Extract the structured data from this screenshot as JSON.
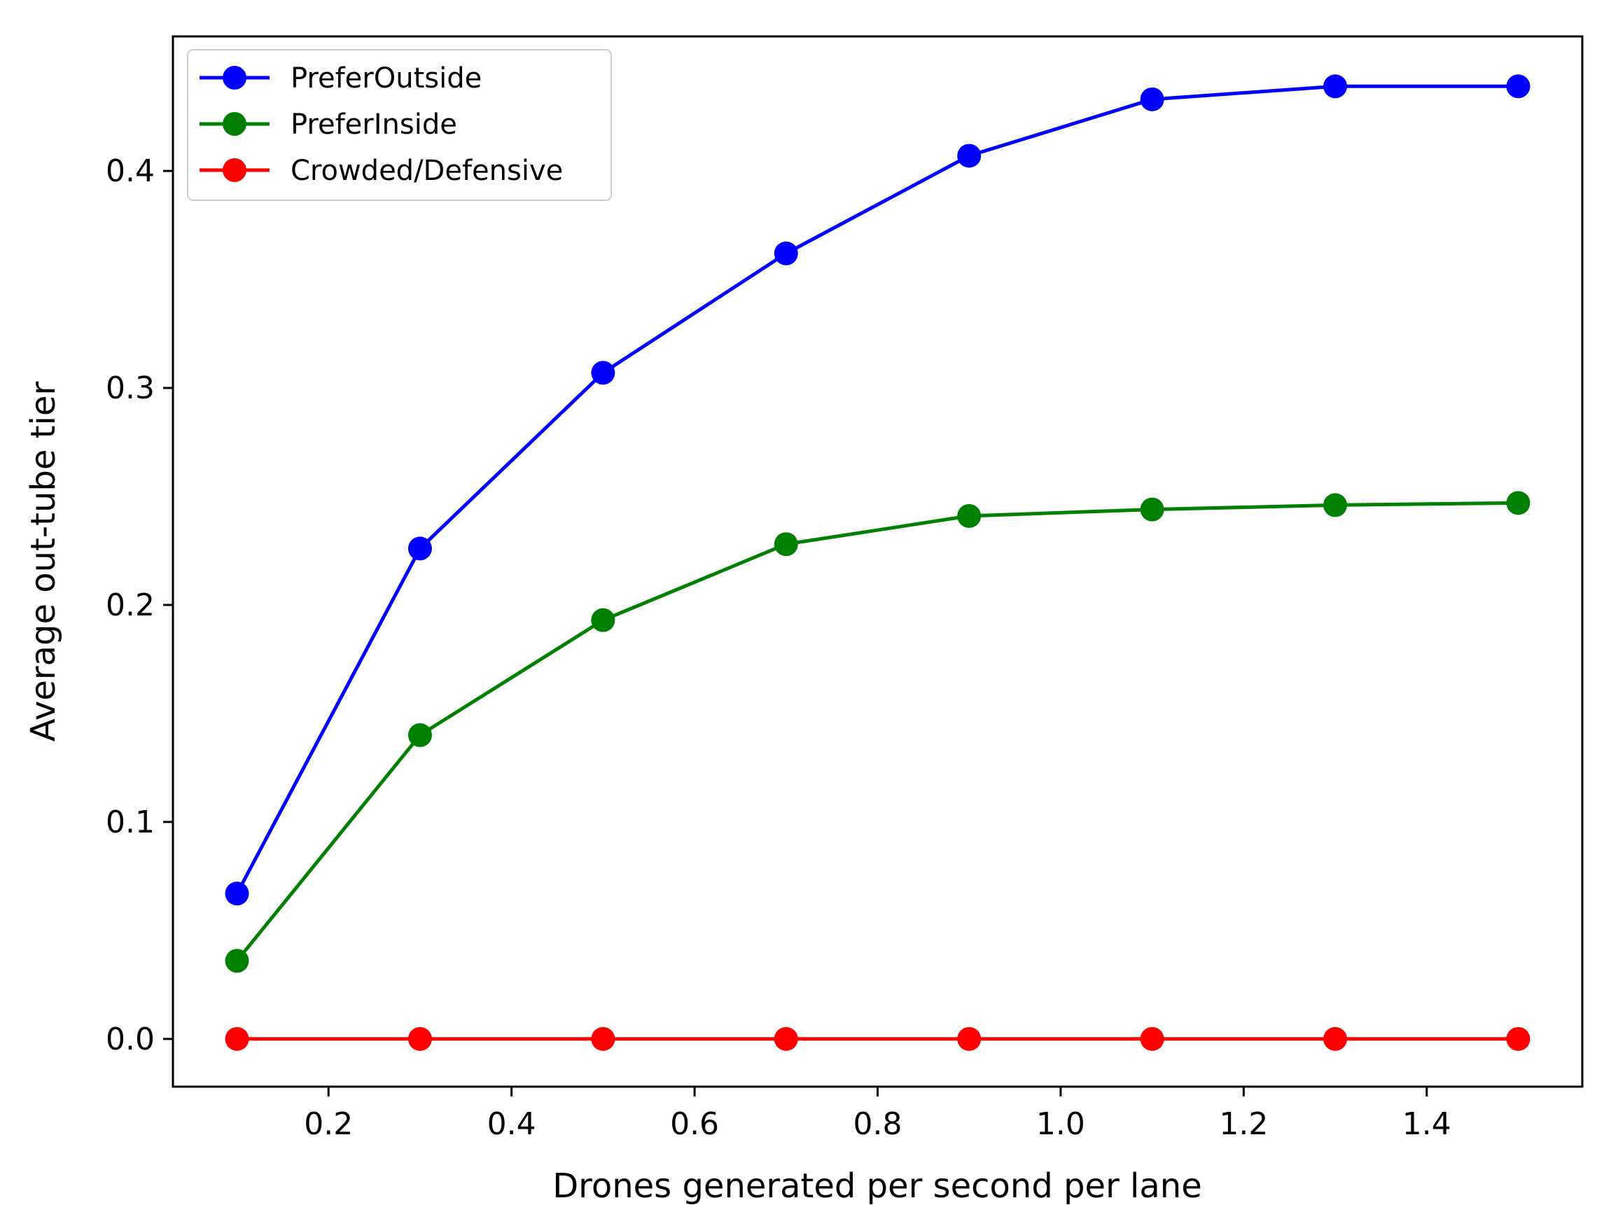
{
  "chart_data": {
    "type": "line",
    "title": "",
    "xlabel": "Drones generated per second per lane",
    "ylabel": "Average out-tube tier",
    "x": [
      0.1,
      0.3,
      0.5,
      0.7,
      0.9,
      1.1,
      1.3,
      1.5
    ],
    "xlim": [
      0.03,
      1.57
    ],
    "ylim": [
      -0.022,
      0.462
    ],
    "xticks": [
      0.2,
      0.4,
      0.6,
      0.8,
      1.0,
      1.2,
      1.4
    ],
    "xtick_labels": [
      "0.2",
      "0.4",
      "0.6",
      "0.8",
      "1.0",
      "1.2",
      "1.4"
    ],
    "yticks": [
      0.0,
      0.1,
      0.2,
      0.3,
      0.4
    ],
    "ytick_labels": [
      "0.0",
      "0.1",
      "0.2",
      "0.3",
      "0.4"
    ],
    "grid": false,
    "legend_position": "top-left",
    "series": [
      {
        "name": "PreferOutside",
        "color": "#0000ff",
        "marker": "circle",
        "values": [
          0.067,
          0.226,
          0.307,
          0.362,
          0.407,
          0.433,
          0.439,
          0.439
        ]
      },
      {
        "name": "PreferInside",
        "color": "#008000",
        "marker": "circle",
        "values": [
          0.036,
          0.14,
          0.193,
          0.228,
          0.241,
          0.244,
          0.246,
          0.247
        ]
      },
      {
        "name": "Crowded/Defensive",
        "color": "#ff0000",
        "marker": "circle",
        "values": [
          0.0,
          0.0,
          0.0,
          0.0,
          0.0,
          0.0,
          0.0,
          0.0
        ]
      }
    ]
  }
}
